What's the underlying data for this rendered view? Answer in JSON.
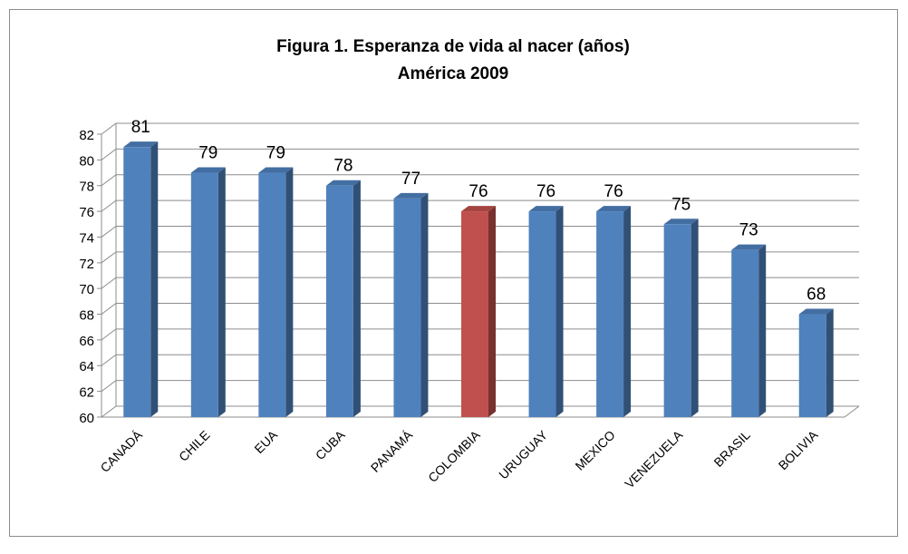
{
  "chart_data": {
    "type": "bar3d",
    "title": "Figura 1. Esperanza de vida al nacer (años)",
    "subtitle": "América 2009",
    "categories": [
      "CANADÁ",
      "CHILE",
      "EUA",
      "CUBA",
      "PANAMÁ",
      "COLOMBIA",
      "URUGUAY",
      "MEXICO",
      "VENEZUELA",
      "BRASIL",
      "BOLIVIA"
    ],
    "values": [
      81,
      79,
      79,
      78,
      77,
      76,
      76,
      76,
      75,
      73,
      68
    ],
    "colors": [
      "#4f81bd",
      "#4f81bd",
      "#4f81bd",
      "#4f81bd",
      "#4f81bd",
      "#c0504d",
      "#4f81bd",
      "#4f81bd",
      "#4f81bd",
      "#4f81bd",
      "#4f81bd"
    ],
    "ylim": [
      60,
      82
    ],
    "yticks": [
      60,
      62,
      64,
      66,
      68,
      70,
      72,
      74,
      76,
      78,
      80,
      82
    ],
    "grid": true
  }
}
